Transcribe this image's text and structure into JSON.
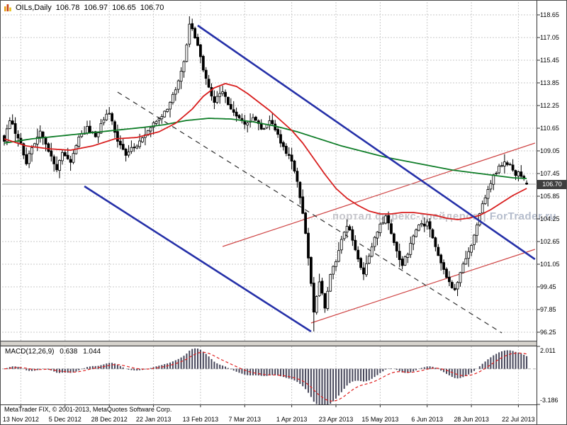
{
  "window_title": {
    "symbol_period": "OILs,Daily",
    "ohlc": {
      "open": "106.78",
      "high": "106.97",
      "low": "106.65",
      "close": "106.70"
    }
  },
  "watermark": {
    "text": "портал форекс-трейдеров",
    "sep": "|",
    "brand": "ForTrader.ru"
  },
  "price_axis": {
    "tick_labels": [
      "118.65",
      "117.05",
      "115.45",
      "113.85",
      "112.25",
      "110.65",
      "109.05",
      "107.45",
      "105.85",
      "104.25",
      "102.65",
      "101.05",
      "99.45",
      "97.85",
      "96.25"
    ],
    "current_price_label": "106.70"
  },
  "date_axis": {
    "labels": [
      {
        "text": "13 Nov 2012",
        "bar": 6
      },
      {
        "text": "5 Dec 2012",
        "bar": 22
      },
      {
        "text": "28 Dec 2012",
        "bar": 38
      },
      {
        "text": "22 Jan 2013",
        "bar": 54
      },
      {
        "text": "13 Feb 2013",
        "bar": 71
      },
      {
        "text": "7 Mar 2013",
        "bar": 87
      },
      {
        "text": "1 Apr 2013",
        "bar": 104
      },
      {
        "text": "23 Apr 2013",
        "bar": 120
      },
      {
        "text": "15 May 2013",
        "bar": 136
      },
      {
        "text": "6 Jun 2013",
        "bar": 153
      },
      {
        "text": "28 Jun 2013",
        "bar": 169
      },
      {
        "text": "22 Jul 2013",
        "bar": 186
      }
    ]
  },
  "macd_panel": {
    "label": "MACD(12,26,9)",
    "main_value": "0.638",
    "signal_value": "1.044",
    "scale_top": "2.011",
    "scale_bottom": "-3.186"
  },
  "footer": {
    "copyright": "MetaTrader FIX, © 2001-2013, MetaQuotes Software Corp."
  },
  "colors": {
    "background": "#ffffff",
    "grid": "#c9c9c9",
    "candle_outline": "#000000",
    "candle_up_fill": "#ffffff",
    "candle_down_fill": "#000000",
    "ma_fast": "#d81e1e",
    "ma_slow": "#0f7d28",
    "trend_blue": "#2530a8",
    "trend_red": "#cf4646",
    "trend_dashed": "#303030",
    "macd_hist": "#46465a",
    "macd_signal": "#e02020",
    "current_price_line": "#9a9a9a",
    "price_box_bg": "#3f3f3f",
    "price_box_text": "#ffffff",
    "watermark": "#c5c5cb"
  },
  "chart_data": {
    "type": "candlestick",
    "instrument": "OILs",
    "timeframe": "Daily",
    "bars_total": 190,
    "ylim": [
      94.9,
      119.55
    ],
    "price_ticks": [
      118.65,
      117.05,
      115.45,
      113.85,
      112.25,
      110.65,
      109.05,
      107.45,
      105.85,
      104.25,
      102.65,
      101.05,
      99.45,
      97.85,
      96.25
    ],
    "current_bar_ohlc": {
      "open": 106.78,
      "high": 106.97,
      "low": 106.65,
      "close": 106.7
    },
    "session_high": 118.55,
    "session_low": 96.3,
    "close_path_anchors": [
      [
        0,
        109.8
      ],
      [
        2,
        111.3
      ],
      [
        5,
        110.0
      ],
      [
        8,
        108.3
      ],
      [
        11,
        109.6
      ],
      [
        13,
        110.5
      ],
      [
        16,
        108.9
      ],
      [
        19,
        107.7
      ],
      [
        21,
        108.9
      ],
      [
        24,
        108.2
      ],
      [
        27,
        110.0
      ],
      [
        30,
        110.6
      ],
      [
        33,
        110.1
      ],
      [
        36,
        111.3
      ],
      [
        38,
        111.8
      ],
      [
        41,
        109.9
      ],
      [
        44,
        108.6
      ],
      [
        47,
        109.4
      ],
      [
        50,
        109.9
      ],
      [
        53,
        110.7
      ],
      [
        56,
        111.2
      ],
      [
        59,
        112.1
      ],
      [
        62,
        113.4
      ],
      [
        65,
        115.2
      ],
      [
        67,
        117.9
      ],
      [
        69,
        117.2
      ],
      [
        71,
        115.8
      ],
      [
        73,
        114.0
      ],
      [
        76,
        112.6
      ],
      [
        79,
        113.2
      ],
      [
        82,
        112.0
      ],
      [
        85,
        111.2
      ],
      [
        87,
        110.8
      ],
      [
        90,
        111.5
      ],
      [
        93,
        110.6
      ],
      [
        96,
        111.2
      ],
      [
        99,
        110.1
      ],
      [
        101,
        109.3
      ],
      [
        104,
        108.5
      ],
      [
        106,
        107.0
      ],
      [
        108,
        104.8
      ],
      [
        110,
        101.5
      ],
      [
        112,
        97.6
      ],
      [
        114,
        99.9
      ],
      [
        116,
        98.0
      ],
      [
        118,
        100.2
      ],
      [
        120,
        101.3
      ],
      [
        122,
        102.8
      ],
      [
        124,
        103.7
      ],
      [
        126,
        102.9
      ],
      [
        128,
        101.3
      ],
      [
        130,
        100.2
      ],
      [
        132,
        101.7
      ],
      [
        134,
        103.1
      ],
      [
        136,
        103.9
      ],
      [
        138,
        104.4
      ],
      [
        140,
        103.3
      ],
      [
        142,
        102.1
      ],
      [
        144,
        100.9
      ],
      [
        146,
        101.9
      ],
      [
        148,
        103.0
      ],
      [
        150,
        103.7
      ],
      [
        153,
        104.0
      ],
      [
        155,
        102.9
      ],
      [
        157,
        101.6
      ],
      [
        159,
        100.5
      ],
      [
        161,
        99.7
      ],
      [
        163,
        99.1
      ],
      [
        165,
        100.3
      ],
      [
        167,
        101.6
      ],
      [
        169,
        102.5
      ],
      [
        171,
        103.9
      ],
      [
        173,
        105.3
      ],
      [
        175,
        106.4
      ],
      [
        177,
        107.2
      ],
      [
        179,
        107.9
      ],
      [
        181,
        108.4
      ],
      [
        183,
        108.0
      ],
      [
        185,
        107.4
      ],
      [
        186,
        107.7
      ],
      [
        188,
        107.1
      ],
      [
        189,
        106.7
      ]
    ],
    "extremes": {
      "peak_bar": 67,
      "peak_high": 118.55,
      "trough_bar": 112,
      "trough_low": 96.3
    },
    "ma_fast_red_anchors": [
      [
        0,
        109.9
      ],
      [
        8,
        109.4
      ],
      [
        16,
        109.2
      ],
      [
        24,
        109.1
      ],
      [
        32,
        109.4
      ],
      [
        40,
        109.9
      ],
      [
        48,
        110.0
      ],
      [
        56,
        110.4
      ],
      [
        62,
        111.0
      ],
      [
        68,
        112.0
      ],
      [
        72,
        112.9
      ],
      [
        76,
        113.5
      ],
      [
        80,
        113.8
      ],
      [
        84,
        113.6
      ],
      [
        88,
        113.1
      ],
      [
        92,
        112.5
      ],
      [
        96,
        111.9
      ],
      [
        100,
        111.2
      ],
      [
        104,
        110.5
      ],
      [
        108,
        109.6
      ],
      [
        112,
        108.5
      ],
      [
        116,
        107.4
      ],
      [
        120,
        106.4
      ],
      [
        124,
        105.7
      ],
      [
        128,
        105.2
      ],
      [
        132,
        104.8
      ],
      [
        136,
        104.6
      ],
      [
        140,
        104.6
      ],
      [
        144,
        104.7
      ],
      [
        148,
        104.7
      ],
      [
        152,
        104.6
      ],
      [
        156,
        104.5
      ],
      [
        160,
        104.3
      ],
      [
        164,
        104.2
      ],
      [
        168,
        104.3
      ],
      [
        172,
        104.5
      ],
      [
        176,
        104.9
      ],
      [
        180,
        105.4
      ],
      [
        184,
        105.9
      ],
      [
        189,
        106.4
      ]
    ],
    "ma_slow_green_anchors": [
      [
        0,
        109.6
      ],
      [
        10,
        109.9
      ],
      [
        20,
        110.1
      ],
      [
        30,
        110.3
      ],
      [
        40,
        110.5
      ],
      [
        50,
        110.7
      ],
      [
        58,
        110.9
      ],
      [
        66,
        111.2
      ],
      [
        74,
        111.35
      ],
      [
        82,
        111.3
      ],
      [
        90,
        111.1
      ],
      [
        98,
        110.8
      ],
      [
        106,
        110.4
      ],
      [
        114,
        109.9
      ],
      [
        122,
        109.4
      ],
      [
        130,
        109.0
      ],
      [
        138,
        108.6
      ],
      [
        146,
        108.3
      ],
      [
        154,
        108.0
      ],
      [
        162,
        107.7
      ],
      [
        170,
        107.5
      ],
      [
        178,
        107.3
      ],
      [
        184,
        107.15
      ],
      [
        189,
        107.1
      ]
    ],
    "trendlines": {
      "blue_channel_upper": [
        [
          70,
          117.9
        ],
        [
          192,
          101.4
        ]
      ],
      "blue_channel_lower": [
        [
          29,
          106.55
        ],
        [
          111,
          96.3
        ]
      ],
      "dashed_midline": [
        [
          41,
          113.2
        ],
        [
          180,
          96.2
        ]
      ],
      "red_channel_upper": [
        [
          79,
          102.3
        ],
        [
          192,
          109.6
        ]
      ],
      "red_channel_lower": [
        [
          111,
          96.9
        ],
        [
          192,
          102.1
        ]
      ]
    },
    "macd": {
      "params": [
        12,
        26,
        9
      ],
      "current_main": 0.638,
      "current_signal": 1.044,
      "scale_max": 2.011,
      "scale_min": -3.186
    }
  }
}
